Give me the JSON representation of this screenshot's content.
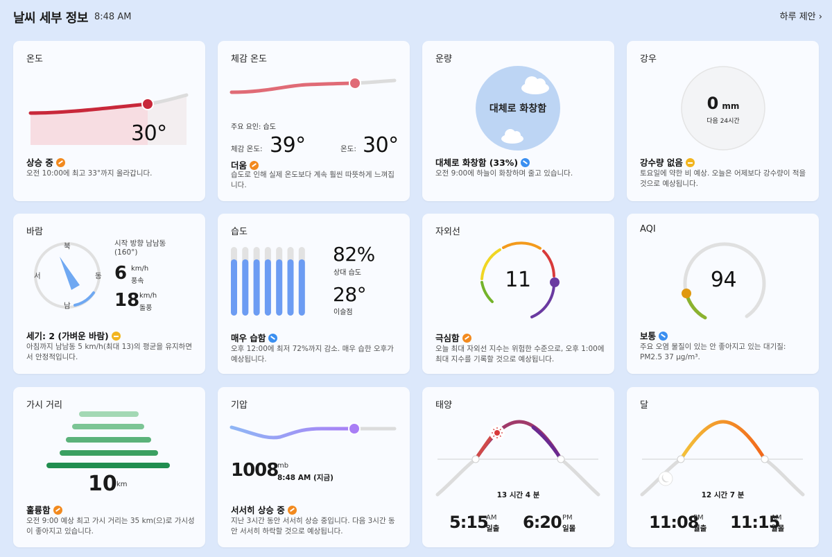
{
  "header": {
    "title": "날씨 세부 정보",
    "time": "8:48 AM",
    "daily_link": "하루 제안"
  },
  "temperature": {
    "title": "온도",
    "value": "30°",
    "status": "상승 중",
    "desc": "오전 10:00에 최고 33°까지 올라갑니다."
  },
  "feels_like": {
    "title": "체감 온도",
    "factor": "주요 요인: 습도",
    "feels_label": "체감 온도:",
    "feels_value": "39°",
    "temp_label": "온도:",
    "temp_value": "30°",
    "status": "더움",
    "desc": "습도로 인해 실제 온도보다 계속 훨씬 따뜻하게 느껴집니다."
  },
  "cloud": {
    "title": "운량",
    "circle_text": "대체로 화창함",
    "status": "대체로 화창함 (33%)",
    "desc": "오전 9:00에 하늘이 화창하며 줄고 있습니다."
  },
  "rain": {
    "title": "강우",
    "amount": "0",
    "unit": "mm",
    "period": "다음 24시간",
    "status": "강수량 없음",
    "desc": "토요일에 약한 비 예상. 오늘은 어제보다 강수량이 적을 것으로 예상됩니다."
  },
  "wind": {
    "title": "바람",
    "north": "북",
    "west": "서",
    "east": "동",
    "south": "남",
    "direction": "시작 방향 남남동",
    "degrees": "(160°)",
    "speed": "6",
    "speed_unit": "km/h",
    "speed_label": "풍속",
    "gust": "18",
    "gust_unit": "km/h",
    "gust_label": "돌풍",
    "status": "세기: 2 (가벼운 바람)",
    "desc": "아침까지 남남동 5 km/h(최대 13)의 평균을 유지하면서 안정적입니다."
  },
  "humidity": {
    "title": "습도",
    "value": "82%",
    "value_label": "상대 습도",
    "dew": "28°",
    "dew_label": "이슬점",
    "status": "매우 습함",
    "desc": "오후 12:00에 최저 72%까지 감소. 매우 습한 오후가 예상됩니다."
  },
  "uv": {
    "title": "자외선",
    "value": "11",
    "status": "극심함",
    "desc": "오늘 최대 자외선 지수는 위험한 수준으로, 오후 1:00에 최대 지수를 기록할 것으로 예상됩니다."
  },
  "aqi": {
    "title": "AQI",
    "value": "94",
    "status": "보통",
    "desc": "주요 오염 물질이 있는 안 좋아지고 있는 대기질: PM2.5 37 μg/m³."
  },
  "visibility": {
    "title": "가시 거리",
    "value": "10",
    "unit": "km",
    "status": "훌륭함",
    "desc": "오전 9:00 예상 최고 가시 거리는 35 km(으)로 가시성이 좋아지고 있습니다."
  },
  "pressure": {
    "title": "기압",
    "value": "1008",
    "unit": "mb",
    "time": "8:48 AM (지금)",
    "status": "서서히 상승 중",
    "desc": "지난 3시간 동안 서서히 상승 중입니다. 다음 3시간 동안 서서히 하락할 것으로 예상됩니다."
  },
  "sun": {
    "title": "태양",
    "duration": "13 시간 4 분",
    "rise_time": "5:15",
    "rise_ampm": "AM",
    "rise_label": "일출",
    "set_time": "6:20",
    "set_ampm": "PM",
    "set_label": "일몰"
  },
  "moon": {
    "title": "달",
    "duration": "12 시간 7 분",
    "rise_time": "11:08",
    "rise_ampm": "PM",
    "rise_label": "월출",
    "set_time": "11:15",
    "set_ampm": "AM",
    "set_label": "월몰"
  },
  "colors": {
    "background": "#dce8fb",
    "card": "#f9fbff",
    "temp_line": "#c8283a",
    "feels_line": "#e06b76",
    "humidity_bar": "#6c9cf3",
    "visibility_bar": "#4caf6a",
    "pressure_line": "#9b82f5",
    "up_badge": "#f28a1f",
    "down_badge": "#3b8ff0"
  }
}
